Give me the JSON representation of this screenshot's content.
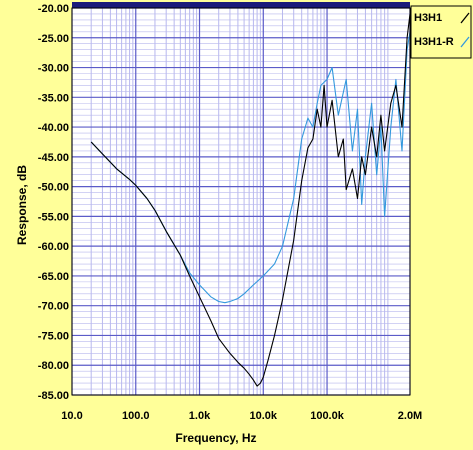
{
  "chart_data": {
    "type": "line",
    "xlabel": "Frequency, Hz",
    "ylabel": "Response, dB",
    "x_scale": "log",
    "xlim": [
      10,
      2000000
    ],
    "ylim": [
      -85,
      -20
    ],
    "x_ticks": [
      10,
      100,
      1000,
      10000,
      100000,
      2000000
    ],
    "x_tick_labels": [
      "10.0",
      "100.0",
      "1.0k",
      "10.0k",
      "100.0k",
      "2.0M"
    ],
    "y_ticks": [
      -20,
      -25,
      -30,
      -35,
      -40,
      -45,
      -50,
      -55,
      -60,
      -65,
      -70,
      -75,
      -80,
      -85
    ],
    "y_tick_labels": [
      "-20.00",
      "-25.00",
      "-30.00",
      "-35.00",
      "-40.00",
      "-45.00",
      "-50.00",
      "-55.00",
      "-60.00",
      "-65.00",
      "-70.00",
      "-75.00",
      "-80.00",
      "-85.00"
    ],
    "grid": true,
    "legend_position": "top-right",
    "colors": {
      "plot_background": "#ffffff",
      "frame_background": "#ffff99",
      "major_grid": "#5b5bc8",
      "minor_grid": "#b8b8ee",
      "top_band": "#1a1a7a"
    },
    "series": [
      {
        "name": "H3H1",
        "color": "#000000",
        "x": [
          20,
          30,
          50,
          80,
          100,
          150,
          200,
          300,
          500,
          700,
          1000,
          1500,
          2000,
          3000,
          4000,
          5000,
          6000,
          7000,
          8000,
          9000,
          10000,
          12000,
          15000,
          20000,
          30000,
          40000,
          50000,
          60000,
          70000,
          80000,
          90000,
          100000,
          120000,
          150000,
          180000,
          200000,
          250000,
          300000,
          350000,
          400000,
          500000,
          600000,
          700000,
          800000,
          1000000,
          1200000,
          1500000,
          1800000,
          2000000
        ],
        "y": [
          -42.5,
          -44.5,
          -47,
          -48.8,
          -49.8,
          -52,
          -54,
          -57.5,
          -61.5,
          -65,
          -68.5,
          -72.5,
          -75.5,
          -78,
          -79.5,
          -80.5,
          -81.5,
          -82.5,
          -83.5,
          -83,
          -82,
          -79,
          -75,
          -69,
          -59,
          -49,
          -43.5,
          -42,
          -37,
          -40,
          -33,
          -40,
          -35.5,
          -45,
          -42,
          -50.5,
          -47,
          -52,
          -45,
          -48,
          -40,
          -45,
          -38,
          -44,
          -36,
          -33,
          -40,
          -25,
          -21
        ]
      },
      {
        "name": "H3H1-R",
        "color": "#3399dd",
        "x": [
          20,
          30,
          50,
          80,
          100,
          150,
          200,
          300,
          500,
          700,
          1000,
          1500,
          2000,
          2500,
          3000,
          4000,
          5000,
          7000,
          10000,
          15000,
          20000,
          30000,
          40000,
          50000,
          60000,
          70000,
          80000,
          100000,
          120000,
          150000,
          200000,
          250000,
          300000,
          350000,
          400000,
          500000,
          600000,
          700000,
          800000,
          1000000,
          1200000,
          1500000,
          1800000,
          2000000
        ],
        "y": [
          -42.5,
          -44.5,
          -47,
          -48.8,
          -49.8,
          -52,
          -54,
          -57.5,
          -61.5,
          -64.5,
          -66.5,
          -68.5,
          -69.3,
          -69.5,
          -69.3,
          -68.8,
          -68,
          -66.5,
          -65,
          -63,
          -60,
          -52,
          -42,
          -38.5,
          -40,
          -36,
          -33,
          -32,
          -30,
          -38,
          -32,
          -44,
          -37,
          -53,
          -45,
          -36,
          -48,
          -40,
          -55,
          -40,
          -32,
          -44,
          -27,
          -24
        ]
      }
    ]
  }
}
